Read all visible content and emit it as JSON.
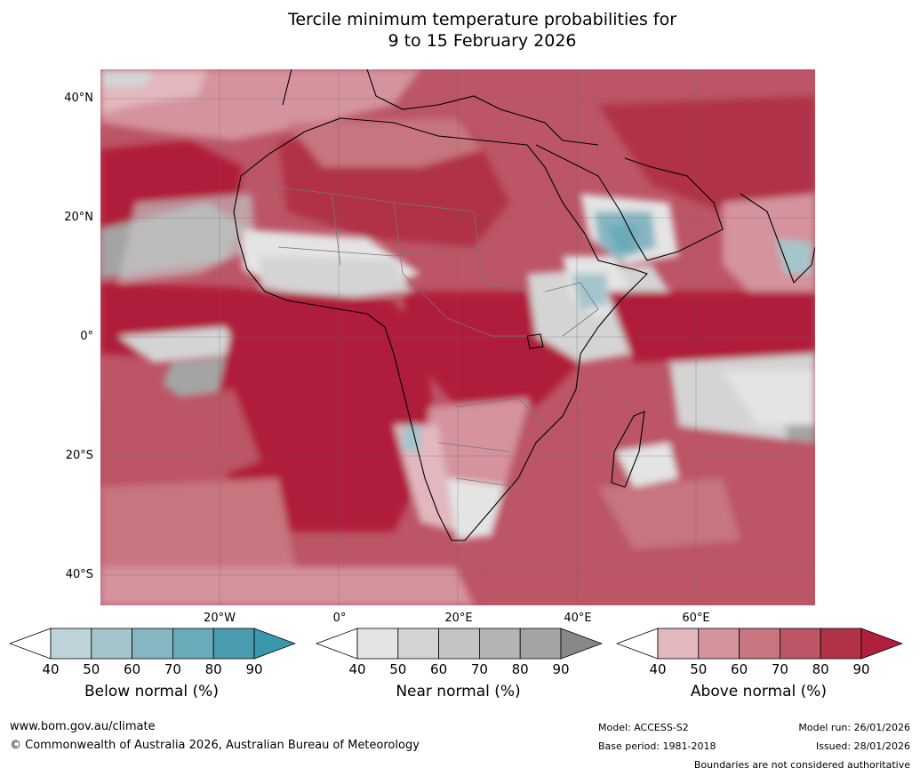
{
  "title": {
    "line1": "Tercile minimum temperature probabilities for",
    "line2": "9 to 15 February 2026"
  },
  "map": {
    "lat_labels": [
      "40°N",
      "20°N",
      "0°",
      "20°S",
      "40°S"
    ],
    "lon_labels": [
      "20°W",
      "0°",
      "20°E",
      "40°E",
      "60°E"
    ]
  },
  "legends": [
    {
      "label": "Below normal (%)",
      "ticks": [
        "40",
        "50",
        "60",
        "70",
        "80",
        "90"
      ],
      "colors": [
        "#ffffff",
        "#bed4da",
        "#a4c5cc",
        "#86b6c2",
        "#69abb8",
        "#4a9cb0",
        "#3a97ac"
      ]
    },
    {
      "label": "Near normal (%)",
      "ticks": [
        "40",
        "50",
        "60",
        "70",
        "80",
        "90"
      ],
      "colors": [
        "#ffffff",
        "#e4e4e4",
        "#d4d4d4",
        "#c4c4c4",
        "#b4b4b4",
        "#a4a4a4",
        "#888888"
      ]
    },
    {
      "label": "Above normal (%)",
      "ticks": [
        "40",
        "50",
        "60",
        "70",
        "80",
        "90"
      ],
      "colors": [
        "#ffffff",
        "#e2b7bd",
        "#d4939d",
        "#c7757f",
        "#bc5566",
        "#b13247",
        "#b01f3b"
      ]
    }
  ],
  "footer": {
    "website": "www.bom.gov.au/climate",
    "copyright": "© Commonwealth of Australia 2026, Australian Bureau of Meteorology",
    "model": "Model: ACCESS-S2",
    "base_period": "Base period: 1981-2018",
    "model_run": "Model run: 26/01/2026",
    "issued": "Issued: 28/01/2026",
    "boundaries": "Boundaries are not considered authoritative"
  }
}
